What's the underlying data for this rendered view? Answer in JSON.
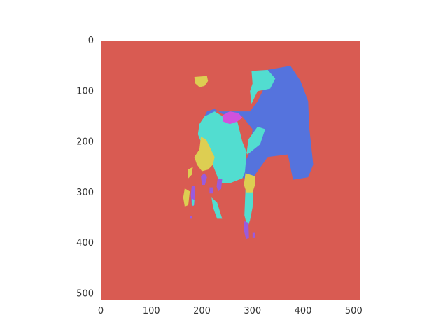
{
  "chart_data": {
    "type": "heatmap",
    "title": "",
    "xlabel": "",
    "ylabel": "",
    "xlim": [
      0,
      512
    ],
    "ylim": [
      512,
      0
    ],
    "x_ticks": [
      0,
      100,
      200,
      300,
      400,
      500
    ],
    "y_ticks": [
      0,
      100,
      200,
      300,
      400,
      500
    ],
    "grid": false,
    "background_class_color": "#D95B52",
    "class_colors": [
      "#D95B52",
      "#5573DD",
      "#52DDD0",
      "#DDCE52",
      "#9A5BDD",
      "#D052DD"
    ],
    "regions": [
      {
        "color": "#5573DD",
        "points": [
          [
            300,
            60
          ],
          [
            330,
            58
          ],
          [
            375,
            50
          ],
          [
            395,
            80
          ],
          [
            410,
            120
          ],
          [
            412,
            170
          ],
          [
            420,
            245
          ],
          [
            410,
            270
          ],
          [
            380,
            275
          ],
          [
            370,
            225
          ],
          [
            330,
            230
          ],
          [
            305,
            265
          ],
          [
            295,
            280
          ],
          [
            280,
            270
          ],
          [
            285,
            240
          ],
          [
            295,
            220
          ],
          [
            300,
            175
          ],
          [
            280,
            150
          ],
          [
            262,
            148
          ],
          [
            240,
            145
          ],
          [
            225,
            135
          ],
          [
            210,
            140
          ],
          [
            205,
            150
          ],
          [
            230,
            140
          ],
          [
            265,
            140
          ],
          [
            295,
            140
          ],
          [
            310,
            120
          ],
          [
            320,
            100
          ],
          [
            325,
            75
          ]
        ]
      },
      {
        "color": "#52DDD0",
        "points": [
          [
            205,
            150
          ],
          [
            225,
            140
          ],
          [
            245,
            152
          ],
          [
            270,
            160
          ],
          [
            280,
            200
          ],
          [
            290,
            225
          ],
          [
            315,
            205
          ],
          [
            325,
            175
          ],
          [
            310,
            170
          ],
          [
            292,
            195
          ],
          [
            288,
            225
          ],
          [
            285,
            260
          ],
          [
            280,
            272
          ],
          [
            255,
            282
          ],
          [
            235,
            282
          ],
          [
            228,
            262
          ],
          [
            215,
            230
          ],
          [
            200,
            205
          ],
          [
            192,
            185
          ],
          [
            195,
            165
          ]
        ]
      },
      {
        "color": "#52DDD0",
        "points": [
          [
            298,
            60
          ],
          [
            330,
            58
          ],
          [
            345,
            75
          ],
          [
            335,
            95
          ],
          [
            310,
            100
          ],
          [
            298,
            125
          ],
          [
            295,
            100
          ],
          [
            300,
            85
          ]
        ]
      },
      {
        "color": "#52DDD0",
        "points": [
          [
            286,
            295
          ],
          [
            302,
            290
          ],
          [
            300,
            330
          ],
          [
            295,
            355
          ],
          [
            290,
            370
          ],
          [
            284,
            345
          ]
        ]
      },
      {
        "color": "#D052DD",
        "points": [
          [
            240,
            148
          ],
          [
            255,
            140
          ],
          [
            272,
            143
          ],
          [
            280,
            152
          ],
          [
            270,
            160
          ],
          [
            255,
            165
          ],
          [
            242,
            160
          ]
        ]
      },
      {
        "color": "#DDCE52",
        "points": [
          [
            185,
            72
          ],
          [
            210,
            70
          ],
          [
            212,
            80
          ],
          [
            205,
            90
          ],
          [
            195,
            92
          ],
          [
            186,
            84
          ]
        ]
      },
      {
        "color": "#DDCE52",
        "points": [
          [
            198,
            190
          ],
          [
            208,
            195
          ],
          [
            225,
            230
          ],
          [
            222,
            245
          ],
          [
            212,
            255
          ],
          [
            200,
            258
          ],
          [
            190,
            245
          ],
          [
            185,
            230
          ],
          [
            195,
            215
          ]
        ]
      },
      {
        "color": "#DDCE52",
        "points": [
          [
            286,
            262
          ],
          [
            305,
            268
          ],
          [
            305,
            285
          ],
          [
            300,
            300
          ],
          [
            288,
            300
          ],
          [
            283,
            285
          ]
        ]
      },
      {
        "color": "#DDCE52",
        "points": [
          [
            172,
            255
          ],
          [
            182,
            250
          ],
          [
            180,
            265
          ],
          [
            173,
            272
          ]
        ]
      },
      {
        "color": "#DDCE52",
        "points": [
          [
            166,
            292
          ],
          [
            176,
            298
          ],
          [
            173,
            325
          ],
          [
            166,
            328
          ],
          [
            163,
            310
          ]
        ]
      },
      {
        "color": "#9A5BDD",
        "points": [
          [
            231,
            272
          ],
          [
            240,
            274
          ],
          [
            238,
            293
          ],
          [
            232,
            298
          ],
          [
            229,
            288
          ]
        ]
      },
      {
        "color": "#9A5BDD",
        "points": [
          [
            215,
            290
          ],
          [
            222,
            290
          ],
          [
            222,
            302
          ],
          [
            215,
            302
          ]
        ]
      },
      {
        "color": "#9A5BDD",
        "points": [
          [
            198,
            268
          ],
          [
            205,
            262
          ],
          [
            210,
            270
          ],
          [
            206,
            285
          ],
          [
            200,
            285
          ]
        ]
      },
      {
        "color": "#9A5BDD",
        "points": [
          [
            180,
            286
          ],
          [
            186,
            288
          ],
          [
            185,
            325
          ],
          [
            180,
            328
          ],
          [
            178,
            305
          ]
        ]
      },
      {
        "color": "#9A5BDD",
        "points": [
          [
            284,
            357
          ],
          [
            292,
            360
          ],
          [
            293,
            390
          ],
          [
            287,
            392
          ],
          [
            283,
            375
          ]
        ]
      },
      {
        "color": "#9A5BDD",
        "points": [
          [
            300,
            380
          ],
          [
            305,
            380
          ],
          [
            305,
            390
          ],
          [
            300,
            390
          ]
        ]
      },
      {
        "color": "#9A5BDD",
        "points": [
          [
            177,
            346
          ],
          [
            181,
            346
          ],
          [
            181,
            352
          ],
          [
            177,
            352
          ]
        ]
      },
      {
        "color": "#52DDD0",
        "points": [
          [
            219,
            310
          ],
          [
            230,
            320
          ],
          [
            240,
            352
          ],
          [
            230,
            352
          ],
          [
            222,
            330
          ]
        ]
      },
      {
        "color": "#52DDD0",
        "points": [
          [
            180,
            312
          ],
          [
            185,
            315
          ],
          [
            184,
            326
          ],
          [
            180,
            326
          ]
        ]
      }
    ]
  }
}
